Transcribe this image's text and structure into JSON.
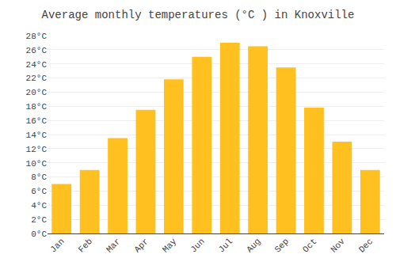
{
  "chart_data": {
    "type": "bar",
    "title": "Average monthly temperatures (°C ) in Knoxville",
    "categories": [
      "Jan",
      "Feb",
      "Mar",
      "Apr",
      "May",
      "Jun",
      "Jul",
      "Aug",
      "Sep",
      "Oct",
      "Nov",
      "Dec"
    ],
    "values": [
      7.0,
      9.0,
      13.5,
      17.5,
      21.8,
      25.0,
      27.0,
      26.5,
      23.5,
      17.8,
      13.0,
      9.0
    ],
    "color": "#FFC020",
    "ylim": [
      0,
      28
    ],
    "yticks": [
      {
        "value": 0,
        "label": "0°C"
      },
      {
        "value": 2,
        "label": "2°C"
      },
      {
        "value": 4,
        "label": "4°C"
      },
      {
        "value": 6,
        "label": "6°C"
      },
      {
        "value": 8,
        "label": "8°C"
      },
      {
        "value": 10,
        "label": "10°C"
      },
      {
        "value": 12,
        "label": "12°C"
      },
      {
        "value": 14,
        "label": "14°C"
      },
      {
        "value": 16,
        "label": "16°C"
      },
      {
        "value": 18,
        "label": "18°C"
      },
      {
        "value": 20,
        "label": "20°C"
      },
      {
        "value": 22,
        "label": "22°C"
      },
      {
        "value": 24,
        "label": "24°C"
      },
      {
        "value": 26,
        "label": "26°C"
      },
      {
        "value": 28,
        "label": "28°C"
      }
    ],
    "grid": true
  }
}
